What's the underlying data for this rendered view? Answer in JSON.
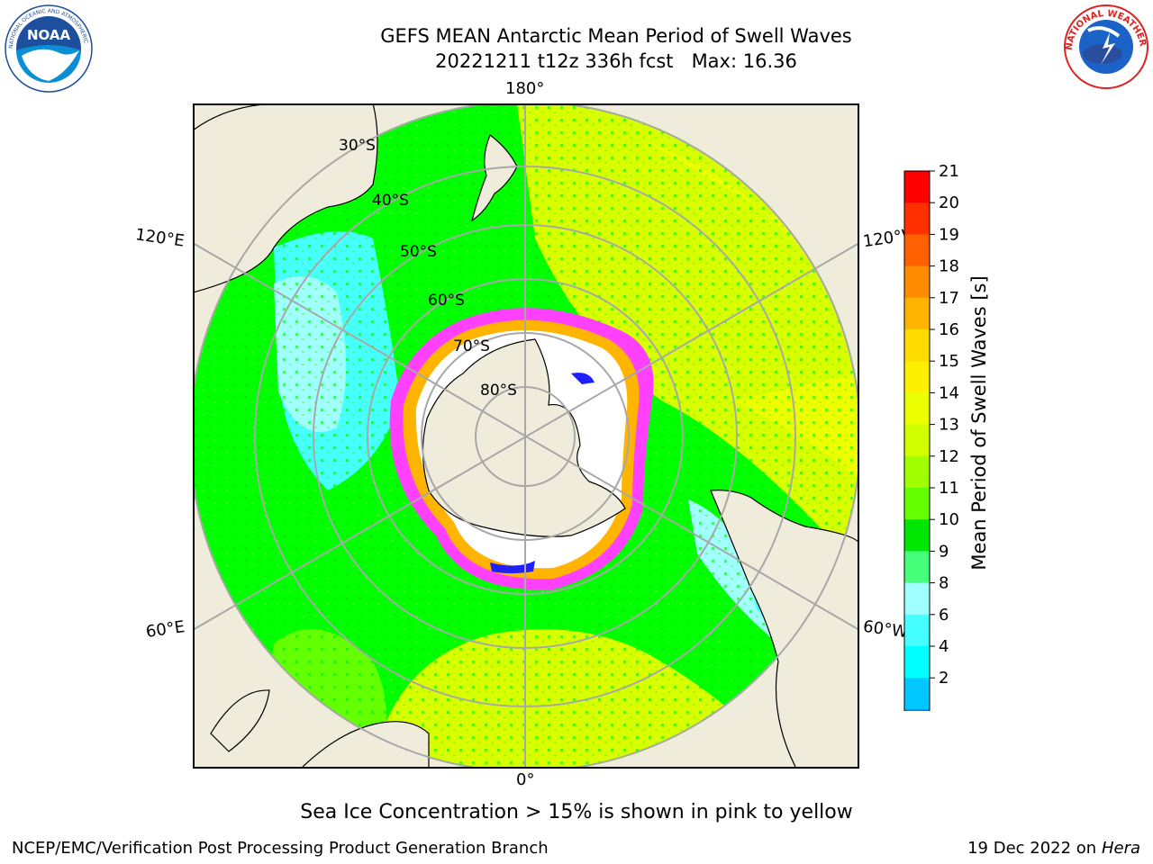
{
  "title": {
    "line1": "GEFS MEAN Antarctic Mean Period of Swell Waves",
    "line2": "20221211 t12z 336h fcst   Max: 16.36"
  },
  "map": {
    "lon_labels": {
      "top": "180°",
      "bottom": "0°",
      "upper_left": "120°E",
      "upper_right": "120°W",
      "lower_left": "60°E",
      "lower_right": "60°W"
    },
    "lat_labels": [
      "30°S",
      "40°S",
      "50°S",
      "60°S",
      "70°S",
      "80°S"
    ],
    "land_color": "#efecdc",
    "ocean_colors": {
      "swell_short": "#46ffff",
      "swell_light": "#a0ffff",
      "swell_mid": "#00ff00",
      "swell_long": "#d7ff00",
      "sea_ice": "#ff40ff"
    }
  },
  "colorbar": {
    "label": "Mean Period of Swell Waves [s]",
    "ticks": [
      "21",
      "20",
      "19",
      "18",
      "17",
      "16",
      "15",
      "14",
      "13",
      "12",
      "11",
      "10",
      "9",
      "8",
      "6",
      "4",
      "2"
    ],
    "colors_top_to_bottom": [
      "#ff0000",
      "#ff3000",
      "#ff6000",
      "#ff8c00",
      "#ffb400",
      "#ffdc00",
      "#fff000",
      "#ebff00",
      "#d2ff00",
      "#a0ff00",
      "#64ff00",
      "#00e600",
      "#46ff7a",
      "#a0ffff",
      "#46ffff",
      "#00ffff",
      "#00c8ff",
      "#0078ff"
    ],
    "extend_color": "#0000ff"
  },
  "footnote": "Sea Ice Concentration > 15% is shown in pink to yellow",
  "credit": "NCEP/EMC/Verification Post Processing Product Generation Branch",
  "run_date": "19 Dec 2022 on",
  "run_host": "Hera"
}
